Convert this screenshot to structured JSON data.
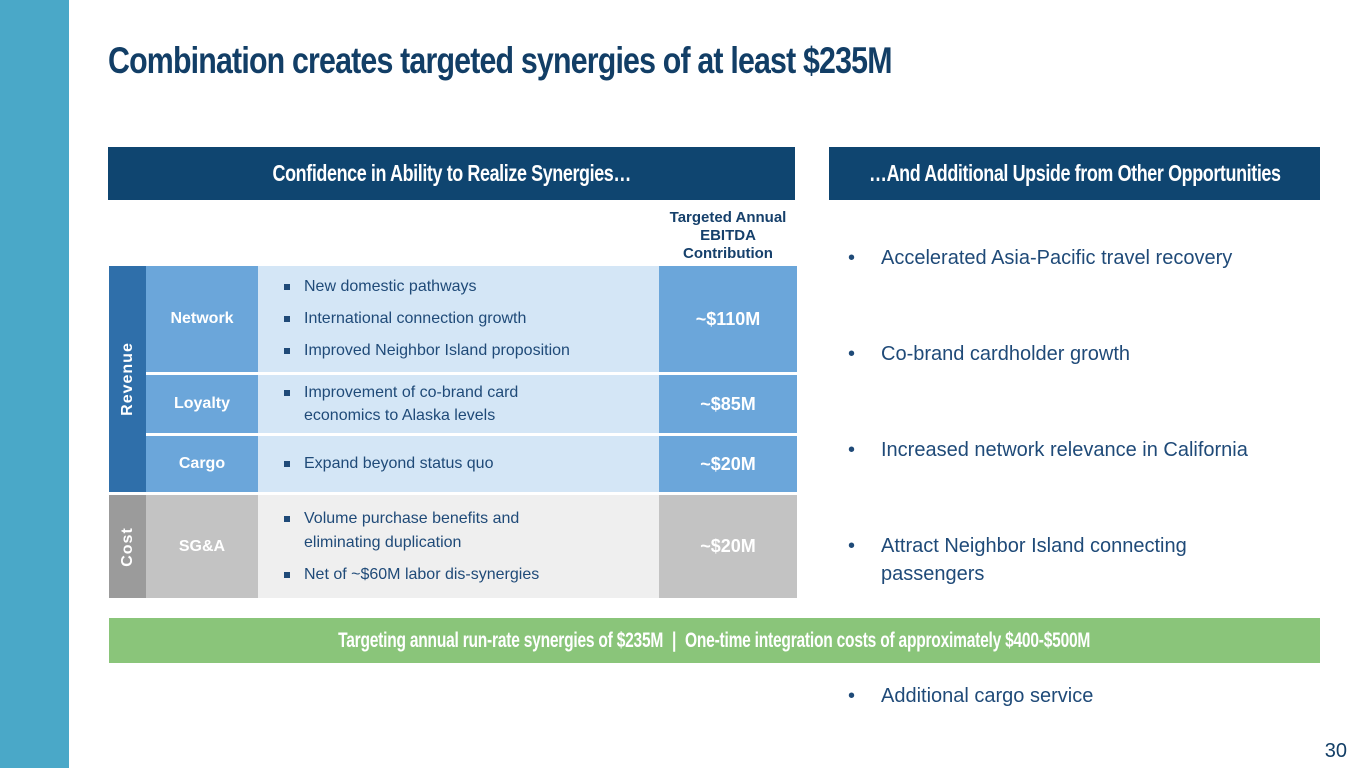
{
  "slide": {
    "title": "Combination creates targeted synergies of at least $235M",
    "page_number": "30"
  },
  "left_panel": {
    "header": "Confidence in Ability to Realize Synergies…",
    "column_header": "Targeted Annual EBITDA Contribution",
    "groups": {
      "revenue": "Revenue",
      "cost": "Cost"
    },
    "rows": [
      {
        "category": "Network",
        "items": [
          "New domestic pathways",
          "International connection growth",
          "Improved Neighbor Island proposition"
        ],
        "value": "~$110M"
      },
      {
        "category": "Loyalty",
        "items": [
          "Improvement of co-brand card economics to Alaska levels"
        ],
        "value": "~$85M"
      },
      {
        "category": "Cargo",
        "items": [
          "Expand beyond status quo"
        ],
        "value": "~$20M"
      },
      {
        "category": "SG&A",
        "items": [
          "Volume purchase benefits and eliminating duplication",
          "Net of ~$60M labor dis-synergies"
        ],
        "value": "~$20M"
      }
    ]
  },
  "right_panel": {
    "header": "…And Additional Upside from Other Opportunities",
    "bullets": [
      "Accelerated Asia-Pacific travel recovery",
      "Co-brand cardholder growth",
      "Increased network relevance in California",
      "Attract Neighbor Island connecting passengers",
      "Additional cargo service"
    ]
  },
  "footer": {
    "left_text": "Targeting annual run-rate synergies of $235M",
    "separator": "|",
    "right_text": "One-time integration costs of approximately $400-$500M"
  },
  "colors": {
    "accent_bar": "#4aa8c8",
    "header_navy": "#0f4570",
    "revenue_blue": "#2f6faa",
    "row_blue": "#6ba6da",
    "row_light_blue": "#d4e6f6",
    "cost_grey": "#9b9b9b",
    "footer_green": "#8ac57a"
  }
}
